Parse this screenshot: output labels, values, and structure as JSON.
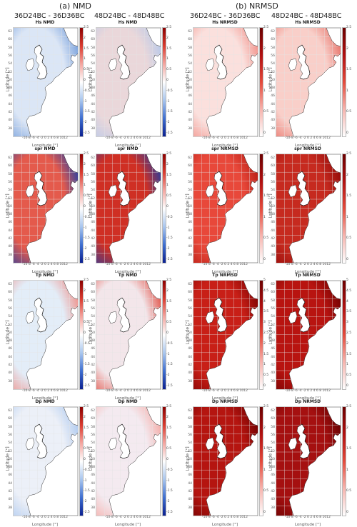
{
  "sections": {
    "a": "(a) NMD",
    "b": "(b) NRMSD"
  },
  "columns": [
    "36D24BC - 36D36BC",
    "48D24BC - 48D48BC",
    "36D24BC - 36D36BC",
    "48D24BC - 48D48BC"
  ],
  "axes": {
    "ylabel": "Latitude [°]",
    "xlabel": "Longitude [°]",
    "xticks": "-10-8 -6 -4 -2 0 2 4 6 8 1012",
    "yticks": [
      "62",
      "60",
      "58",
      "56",
      "54",
      "52",
      "50",
      "48",
      "46",
      "44",
      "42",
      "40",
      "38"
    ]
  },
  "colorbars": {
    "nmd": [
      "2.5",
      "2",
      "1.5",
      "1",
      "0.5",
      "0",
      "-0.5",
      "-1",
      "-1.5",
      "-2",
      "-2.5"
    ],
    "nrmsd_hs": [
      "2.5",
      "2",
      "1.5",
      "1",
      "0.5",
      "0"
    ],
    "nrmsd_spr": [
      "2.5",
      "2",
      "1.5",
      "1",
      "0.5",
      "0"
    ],
    "nrmsd_tp": [
      "5",
      "4.5",
      "4",
      "3.5",
      "3",
      "2.5",
      "2",
      "1.5",
      "1",
      "0.5",
      "0"
    ],
    "nrmsd_dp": [
      "2.5",
      "2",
      "1.5",
      "1",
      "0.5",
      "0"
    ]
  },
  "panel_titles": [
    [
      "Hs NMD",
      "Hs NMD",
      "Hs NRMSD",
      "Hs NRMSD"
    ],
    [
      "spr NMD",
      "spr NMD",
      "spr NRMSD",
      "spr NRMSD"
    ],
    [
      "Tp NMD",
      "Tp NMD",
      "Tp NRMSD",
      "Tp NRMSD"
    ],
    [
      "Dp NMD",
      "Dp NMD",
      "Dp NRMSD",
      "Dp NRMSD"
    ]
  ],
  "panel_colorbars": [
    [
      "nmd",
      "nmd",
      "nrmsd_hs",
      "nrmsd_hs"
    ],
    [
      "nmd",
      "nmd",
      "nrmsd_spr",
      "nrmsd_spr"
    ],
    [
      "nmd",
      "nmd",
      "nrmsd_tp",
      "nrmsd_tp"
    ],
    [
      "nmd",
      "nmd",
      "nrmsd_dp",
      "nrmsd_dp"
    ]
  ],
  "colors": {
    "diverging": [
      "#0a1f8f",
      "#3f6fd0",
      "#a9c6ee",
      "#ffffff",
      "#f4a6a0",
      "#d93b2f",
      "#8b0000"
    ],
    "sequential": [
      "#ffffff",
      "#f7b4ae",
      "#e34a3c",
      "#b01010",
      "#6b0000"
    ],
    "land": "#ffffff",
    "grid": "#e3e3e3"
  },
  "panel_fill": [
    [
      "#dbe6f6",
      "#ead7da",
      "#fbe0dd",
      "#f9cfc9"
    ],
    [
      "#e45a4c",
      "#cf2f24",
      "#e8483a",
      "#c62a1f"
    ],
    [
      "#e3edf8",
      "#f3e6ea",
      "#c81f17",
      "#b81410"
    ],
    [
      "#ecf0f8",
      "#f4eaf0",
      "#b51510",
      "#a51010"
    ]
  ],
  "panel_accent": [
    [
      "#6f9ad9",
      "#b4c8eb",
      "#f08a82",
      "#e66a60"
    ],
    [
      "#1c3ea8",
      "#1c3ea8",
      "#b51a12",
      "#8e0606"
    ],
    [
      "#f08a82",
      "#e0483c",
      "#7a0000",
      "#6b0000"
    ],
    [
      "#a9c6ee",
      "#f4a6a0",
      "#6b0000",
      "#600000"
    ]
  ]
}
